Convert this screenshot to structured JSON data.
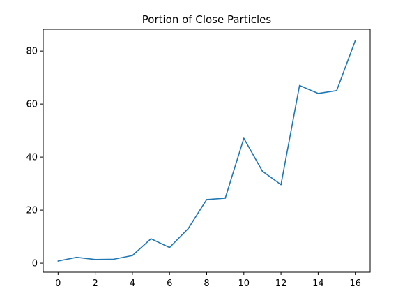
{
  "chart_data": {
    "type": "line",
    "title": "Portion of Close Particles",
    "xlabel": "",
    "ylabel": "",
    "xlim": [
      -0.8,
      16.8
    ],
    "ylim": [
      -3.4,
      88.2
    ],
    "x_ticks": [
      0,
      2,
      4,
      6,
      8,
      10,
      12,
      14,
      16
    ],
    "y_ticks": [
      0,
      20,
      40,
      60,
      80
    ],
    "grid": false,
    "series": [
      {
        "color": "#1f77b4",
        "x": [
          0,
          1,
          2,
          3,
          4,
          5,
          6,
          7,
          8,
          9,
          10,
          11,
          12,
          13,
          14,
          15,
          16
        ],
        "y": [
          0.8,
          2.2,
          1.4,
          1.5,
          2.9,
          9.2,
          5.9,
          13.0,
          24.0,
          24.5,
          47.1,
          34.7,
          29.6,
          67.0,
          64.0,
          65.1,
          84.0
        ]
      }
    ]
  }
}
